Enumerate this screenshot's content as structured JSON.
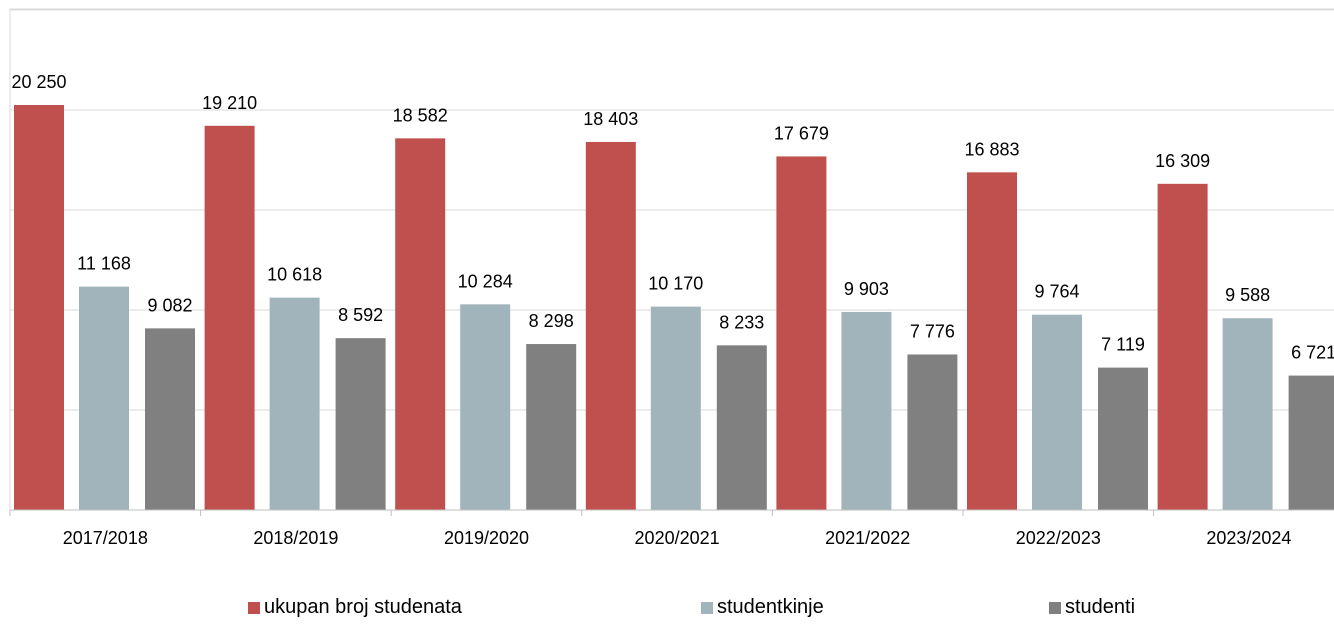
{
  "chart_data": {
    "type": "bar",
    "title": "",
    "xlabel": "",
    "ylabel": "",
    "ylim": [
      0,
      25000
    ],
    "grid": true,
    "legend_position": "bottom",
    "categories": [
      "2017/2018",
      "2018/2019",
      "2019/2020",
      "2020/2021",
      "2021/2022",
      "2022/2023",
      "2023/2024"
    ],
    "series": [
      {
        "name": "ukupan broj studenata",
        "color": "#c0504d",
        "values": [
          20250,
          19210,
          18582,
          18403,
          17679,
          16883,
          16309
        ]
      },
      {
        "name": "studentkinje",
        "color": "#a2b4bb",
        "values": [
          11168,
          10618,
          10284,
          10170,
          9903,
          9764,
          9588
        ]
      },
      {
        "name": "studenti",
        "color": "#808080",
        "values": [
          9082,
          8592,
          8298,
          8233,
          7776,
          7119,
          6721
        ]
      }
    ],
    "data_labels": [
      [
        "20 250",
        "19 210",
        "18 582",
        "18 403",
        "17 679",
        "16 883",
        "16 309"
      ],
      [
        "11 168",
        "10 618",
        "10 284",
        "10 170",
        "9 903",
        "9 764",
        "9 588"
      ],
      [
        "9 082",
        "8 592",
        "8 298",
        "8 233",
        "7 776",
        "7 119",
        "6 721"
      ]
    ]
  }
}
